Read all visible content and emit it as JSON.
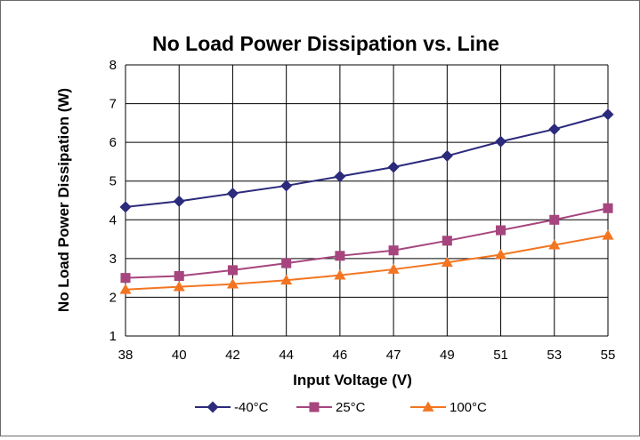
{
  "chart_data": {
    "type": "line",
    "title": "No Load Power Dissipation vs. Line",
    "xlabel": "Input Voltage (V)",
    "ylabel": "No Load Power Dissipation (W)",
    "categories": [
      "38",
      "40",
      "42",
      "44",
      "46",
      "47",
      "49",
      "51",
      "53",
      "55"
    ],
    "ylim": [
      1,
      8
    ],
    "yticks": [
      "1",
      "2",
      "3",
      "4",
      "5",
      "6",
      "7",
      "8"
    ],
    "grid": true,
    "legend_position": "bottom",
    "series": [
      {
        "name": "-40°C",
        "color": "#2b2a7c",
        "marker": "diamond",
        "values": [
          4.33,
          4.48,
          4.68,
          4.88,
          5.12,
          5.36,
          5.65,
          6.02,
          6.34,
          6.72
        ]
      },
      {
        "name": "25°C",
        "color": "#a6457e",
        "marker": "square",
        "values": [
          2.5,
          2.55,
          2.7,
          2.88,
          3.07,
          3.21,
          3.46,
          3.73,
          4.0,
          4.3
        ]
      },
      {
        "name": "100°C",
        "color": "#f37521",
        "marker": "triangle",
        "values": [
          2.2,
          2.27,
          2.34,
          2.44,
          2.57,
          2.72,
          2.9,
          3.1,
          3.35,
          3.6
        ]
      }
    ]
  }
}
